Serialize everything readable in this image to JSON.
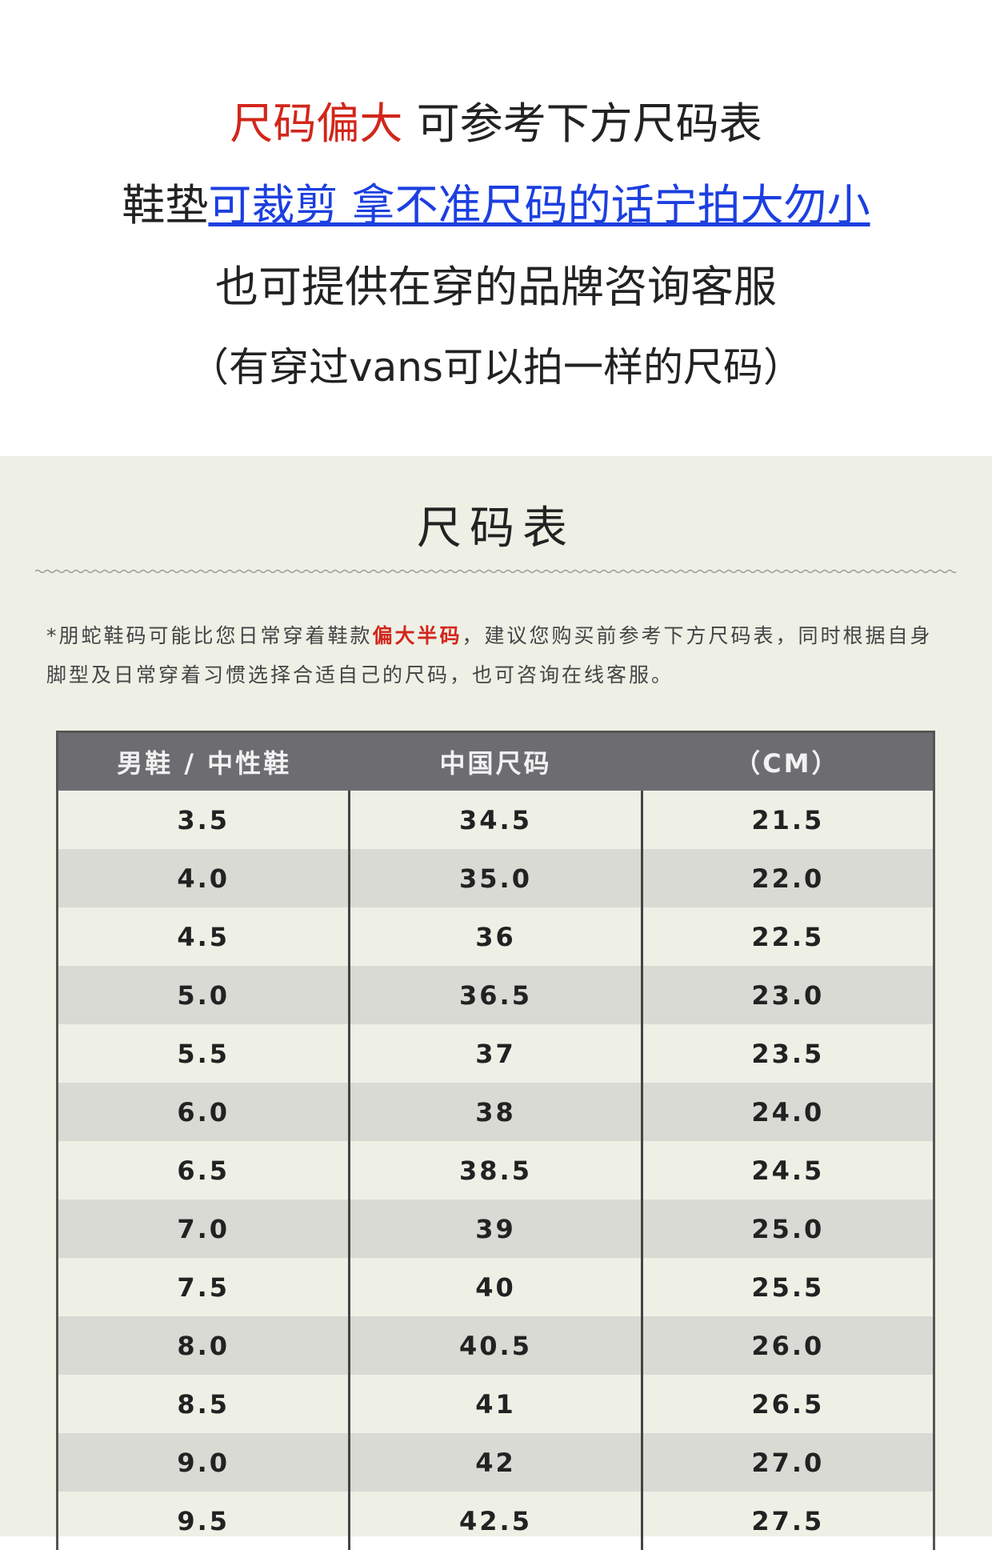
{
  "notice": {
    "line1": {
      "highlight": "尺码偏大",
      "rest": " 可参考下方尺码表"
    },
    "line2": {
      "prefix": "鞋垫",
      "link": "可裁剪 拿不准尺码的话宁拍大勿小"
    },
    "line3": "也可提供在穿的品牌咨询客服",
    "line4": "（有穿过vans可以拍一样的尺码）"
  },
  "size_chart": {
    "title": "尺码表",
    "note": {
      "before": "*朋蛇鞋码可能比您日常穿着鞋款",
      "highlight": "偏大半码",
      "after": "，建议您购买前参考下方尺码表，同时根据自身脚型及日常穿着习惯选择合适自己的尺码，也可咨询在线客服。"
    },
    "table": {
      "headers": [
        "男鞋 / 中性鞋",
        "中国尺码",
        "（CM）"
      ],
      "rows": [
        [
          "3.5",
          "34.5",
          "21.5"
        ],
        [
          "4.0",
          "35.0",
          "22.0"
        ],
        [
          "4.5",
          "36",
          "22.5"
        ],
        [
          "5.0",
          "36.5",
          "23.0"
        ],
        [
          "5.5",
          "37",
          "23.5"
        ],
        [
          "6.0",
          "38",
          "24.0"
        ],
        [
          "6.5",
          "38.5",
          "24.5"
        ],
        [
          "7.0",
          "39",
          "25.0"
        ],
        [
          "7.5",
          "40",
          "25.5"
        ],
        [
          "8.0",
          "40.5",
          "26.0"
        ],
        [
          "8.5",
          "41",
          "26.5"
        ],
        [
          "9.0",
          "42",
          "27.0"
        ],
        [
          "9.5",
          "42.5",
          "27.5"
        ]
      ]
    }
  }
}
